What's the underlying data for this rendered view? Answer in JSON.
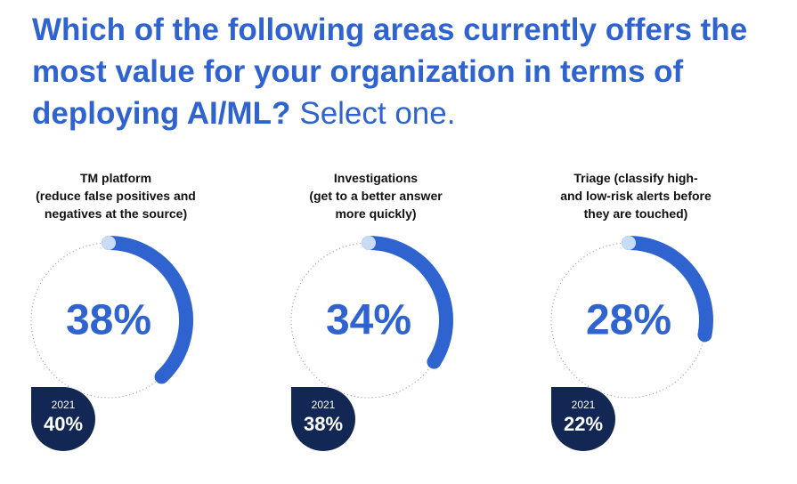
{
  "title": {
    "bold": "Which of the following areas currently offers the most value for your organization in terms of deploying AI/ML?",
    "light": "Select one."
  },
  "chart_data": {
    "type": "donut",
    "unit": "%",
    "items": [
      {
        "label_lines": [
          "TM platform",
          "(reduce false positives and",
          "negatives at the source)"
        ],
        "value": 38,
        "value_label": "38%",
        "prev_year": "2021",
        "prev_value": 40,
        "prev_label": "40%"
      },
      {
        "label_lines": [
          "Investigations",
          "(get to a better answer",
          "more quickly)"
        ],
        "value": 34,
        "value_label": "34%",
        "prev_year": "2021",
        "prev_value": 38,
        "prev_label": "38%"
      },
      {
        "label_lines": [
          "Triage (classify high-",
          "and low-risk alerts before",
          "they are touched)"
        ],
        "value": 28,
        "value_label": "28%",
        "prev_year": "2021",
        "prev_value": 22,
        "prev_label": "22%"
      }
    ],
    "colors": {
      "arc": "#2f63cf",
      "arc_cap": "#c9dcf6",
      "track": "#9a9a9a",
      "badge": "#122753"
    }
  }
}
